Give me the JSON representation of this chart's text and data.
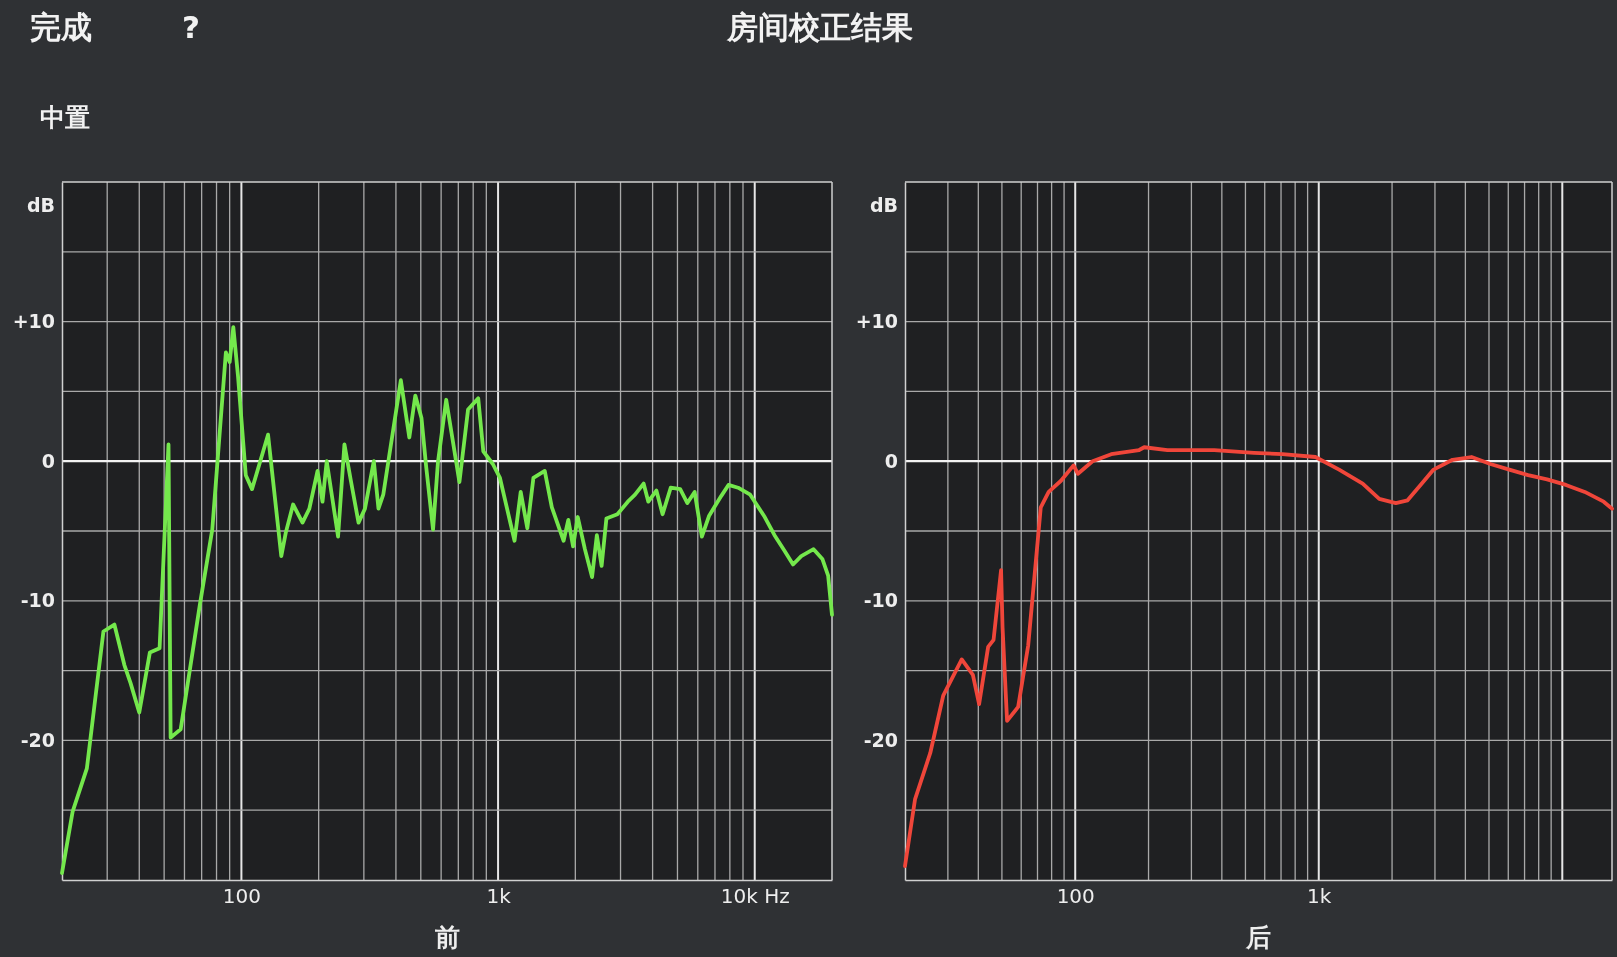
{
  "chart_data": [
    {
      "type": "line",
      "title": "房间校正结果",
      "subtitle": "中置",
      "annotations": [
        "完成",
        "?"
      ],
      "xlabel": "前",
      "ylabel": "dB",
      "log": "x",
      "grid": true,
      "xlim": [
        20,
        20000
      ],
      "ylim": [
        -30,
        20
      ],
      "xticks": [
        {
          "value": 30,
          "label": null
        },
        {
          "value": 40,
          "label": null
        },
        {
          "value": 50,
          "label": null
        },
        {
          "value": 60,
          "label": null
        },
        {
          "value": 70,
          "label": null
        },
        {
          "value": 80,
          "label": null
        },
        {
          "value": 90,
          "label": null
        },
        100,
        {
          "value": 200,
          "label": null
        },
        {
          "value": 300,
          "label": null
        },
        {
          "value": 400,
          "label": null
        },
        {
          "value": 500,
          "label": null
        },
        {
          "value": 600,
          "label": null
        },
        {
          "value": 700,
          "label": null
        },
        {
          "value": 800,
          "label": null
        },
        {
          "value": 900,
          "label": null
        },
        {
          "value": 1000,
          "label": "1k"
        },
        {
          "value": 2000,
          "label": null
        },
        {
          "value": 3000,
          "label": null
        },
        {
          "value": 4000,
          "label": null
        },
        {
          "value": 5000,
          "label": null
        },
        {
          "value": 6000,
          "label": null
        },
        {
          "value": 7000,
          "label": null
        },
        {
          "value": 8000,
          "label": null
        },
        {
          "value": 9000,
          "label": null
        },
        {
          "value": 10000,
          "label": "10k Hz"
        }
      ],
      "yticks": [
        {
          "value": -25,
          "label": null
        },
        -20,
        {
          "value": -15,
          "label": null
        },
        -10,
        {
          "value": -5,
          "label": null
        },
        0,
        {
          "value": 5,
          "label": null
        },
        {
          "value": 10,
          "label": "+10"
        },
        {
          "value": 15,
          "label": null
        }
      ],
      "ref_lines": [
        {
          "axis": "y",
          "value": 0,
          "color": "#f2f2f2"
        }
      ],
      "x": [
        20,
        22,
        25,
        27,
        29,
        32,
        35,
        37,
        40,
        44,
        48,
        52,
        53,
        58,
        69,
        77,
        87,
        90,
        93,
        97,
        104,
        110,
        127,
        143,
        149,
        159,
        173,
        184,
        198,
        207,
        215,
        238,
        252,
        267,
        286,
        303,
        328,
        342,
        357,
        376,
        418,
        451,
        476,
        503,
        524,
        558,
        583,
        628,
        707,
        764,
        837,
        876,
        954,
        1017,
        1159,
        1225,
        1300,
        1373,
        1520,
        1620,
        1800,
        1878,
        1960,
        2044,
        2179,
        2324,
        2426,
        2532,
        2643,
        2917,
        3203,
        3417,
        3690,
        3850,
        4138,
        4375,
        4705,
        5124,
        5464,
        5832,
        6224,
        6643,
        7400,
        7900,
        8611,
        9600,
        10940,
        11940,
        13040,
        14100,
        15180,
        16950,
        18340,
        19320,
        20000
      ],
      "series": [
        {
          "color": "#74e84c",
          "values": [
            -29.5,
            -25.1,
            -22,
            -16.9,
            -12.2,
            -11.7,
            -14.6,
            -15.9,
            -18,
            -13.7,
            -13.4,
            1.2,
            -19.8,
            -19.2,
            -10.2,
            -4.9,
            7.8,
            7.1,
            9.6,
            6.1,
            -1,
            -2,
            1.9,
            -6.8,
            -5.1,
            -3.1,
            -4.4,
            -3.4,
            -0.7,
            -2.9,
            0,
            -5.4,
            1.2,
            -1.4,
            -4.4,
            -3.4,
            0,
            -3.4,
            -2.4,
            0.3,
            5.8,
            1.7,
            4.7,
            3.1,
            -0.3,
            -4.9,
            -0.1,
            4.4,
            -1.5,
            3.7,
            4.5,
            0.7,
            -0.2,
            -1.2,
            -5.7,
            -2.2,
            -4.8,
            -1.2,
            -0.7,
            -3.3,
            -5.7,
            -4.2,
            -6.1,
            -4,
            -6.3,
            -8.3,
            -5.3,
            -7.5,
            -4.1,
            -3.8,
            -2.9,
            -2.4,
            -1.6,
            -2.9,
            -2.1,
            -3.8,
            -1.9,
            -2,
            -3,
            -2.2,
            -5.4,
            -3.9,
            -2.5,
            -1.7,
            -1.9,
            -2.4,
            -4,
            -5.3,
            -6.4,
            -7.4,
            -6.8,
            -6.3,
            -7,
            -8.2,
            -11
          ]
        }
      ]
    },
    {
      "type": "line",
      "xlabel": "后",
      "ylabel": "dB",
      "log": "x",
      "grid": true,
      "xlim": [
        20,
        16000
      ],
      "ylim": [
        -30,
        20
      ],
      "xticks": [
        {
          "value": 30,
          "label": null
        },
        {
          "value": 40,
          "label": null
        },
        {
          "value": 50,
          "label": null
        },
        {
          "value": 60,
          "label": null
        },
        {
          "value": 70,
          "label": null
        },
        {
          "value": 80,
          "label": null
        },
        {
          "value": 90,
          "label": null
        },
        100,
        {
          "value": 200,
          "label": null
        },
        {
          "value": 300,
          "label": null
        },
        {
          "value": 400,
          "label": null
        },
        {
          "value": 500,
          "label": null
        },
        {
          "value": 600,
          "label": null
        },
        {
          "value": 700,
          "label": null
        },
        {
          "value": 800,
          "label": null
        },
        {
          "value": 900,
          "label": null
        },
        {
          "value": 1000,
          "label": "1k"
        },
        {
          "value": 2000,
          "label": null
        },
        {
          "value": 3000,
          "label": null
        },
        {
          "value": 4000,
          "label": null
        },
        {
          "value": 5000,
          "label": null
        },
        {
          "value": 6000,
          "label": null
        },
        {
          "value": 7000,
          "label": null
        },
        {
          "value": 8000,
          "label": null
        },
        {
          "value": 9000,
          "label": null
        },
        {
          "value": 10000,
          "label": null
        }
      ],
      "yticks": [
        {
          "value": -25,
          "label": null
        },
        -20,
        {
          "value": -15,
          "label": null
        },
        -10,
        {
          "value": -5,
          "label": null
        },
        0,
        {
          "value": 5,
          "label": null
        },
        {
          "value": 10,
          "label": "+10"
        },
        {
          "value": 15,
          "label": null
        }
      ],
      "ref_lines": [
        {
          "axis": "y",
          "value": 0,
          "color": "#f2f2f2"
        }
      ],
      "x": [
        20,
        22,
        25.4,
        28.7,
        34.2,
        38,
        40.3,
        43.9,
        46.2,
        49.6,
        50.3,
        52.5,
        58.3,
        64.1,
        72.2,
        77.8,
        87.4,
        98.4,
        102.6,
        117.8,
        140.6,
        183,
        192,
        239,
        372,
        542,
        709,
        969,
        1212,
        1515,
        1772,
        2072,
        2316,
        2592,
        2962,
        3542,
        4240,
        5067,
        6057,
        7240,
        8660,
        10350,
        12370,
        14790,
        16000
      ],
      "series": [
        {
          "color": "#f0463a",
          "values": [
            -29,
            -24.2,
            -20.9,
            -16.8,
            -14.2,
            -15.3,
            -17.4,
            -13.3,
            -12.8,
            -7.8,
            -11.9,
            -18.6,
            -17.6,
            -13.2,
            -3.3,
            -2.2,
            -1.4,
            -0.3,
            -0.9,
            0,
            0.5,
            0.8,
            1,
            0.8,
            0.8,
            0.6,
            0.5,
            0.3,
            -0.6,
            -1.6,
            -2.7,
            -3,
            -2.8,
            -1.8,
            -0.6,
            0.1,
            0.3,
            -0.2,
            -0.6,
            -1,
            -1.3,
            -1.7,
            -2.2,
            -2.9,
            -3.4
          ]
        }
      ]
    }
  ]
}
